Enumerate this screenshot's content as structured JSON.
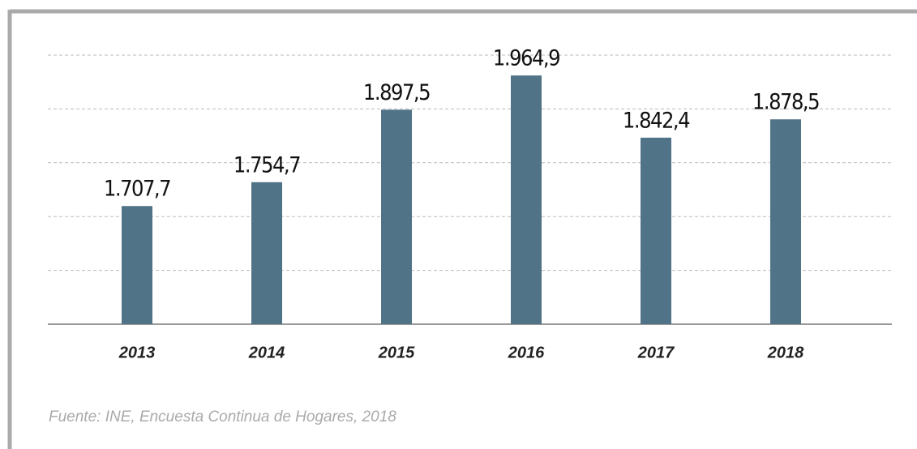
{
  "chart_data": {
    "type": "bar",
    "categories": [
      "2013",
      "2014",
      "2015",
      "2016",
      "2017",
      "2018"
    ],
    "values": [
      1707.7,
      1754.7,
      1897.5,
      1964.9,
      1842.4,
      1878.5
    ],
    "value_labels": [
      "1.707,7",
      "1.754,7",
      "1.897,5",
      "1.964,9",
      "1.842,4",
      "1.878,5"
    ],
    "color": "#517387",
    "ylim": [
      1475,
      2005
    ],
    "yticks": [
      1475,
      1581,
      1687,
      1793,
      1899,
      2005
    ],
    "grid": true,
    "source": "Fuente: INE, Encuesta Continua de Hogares, 2018"
  }
}
